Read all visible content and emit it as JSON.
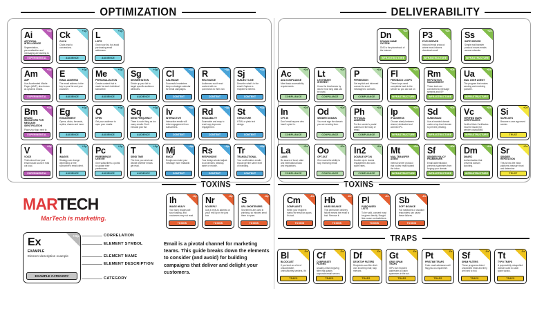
{
  "headers": {
    "optimization": "OPTIMIZATION",
    "deliverability": "DELIVERABILITY",
    "toxins_left": "TOXINS",
    "toxins_right": "TOXINS",
    "traps": "TRAPS"
  },
  "branding": {
    "mar": "MAR",
    "tech": "TECH",
    "tagline": "MarTech is marketing."
  },
  "intro": {
    "text": "Email is a pivotal channel for marketing teams. This guide breaks down the elements to consider (and avoid) for building campaigns that deliver and delight your customers."
  },
  "legend": {
    "correlation_mark": "+Op",
    "symbol": "Ex",
    "name": "EXAMPLE",
    "description": "Element description example",
    "category": "EXAMPLE CATEGORY",
    "labels": [
      "CORRELATION",
      "ELEMENT SYMBOL",
      "ELEMENT NAME",
      "ELEMENT DESCRIPTION",
      "CATEGORY"
    ]
  },
  "categories": {
    "experimental": {
      "label": "EXPERIMENTAL",
      "color": "#b95ab5",
      "text": "#ffffff"
    },
    "audience": {
      "label": "AUDIENCE",
      "color": "#7ed3e0",
      "text": "#09363d"
    },
    "content": {
      "label": "CONTENT",
      "color": "#4aa4d8",
      "text": "#ffffff"
    },
    "compliance": {
      "label": "COMPLIANCE",
      "color": "#b7dcae",
      "text": "#1d4a1d"
    },
    "infrastructure": {
      "label": "INFRASTRUCTURE",
      "color": "#82bd4a",
      "text": "#ffffff"
    },
    "trust": {
      "label": "TRUST",
      "color": "#f4e63a",
      "text": "#4a4200"
    },
    "toxins": {
      "label": "TOXINS",
      "color": "#e45f31",
      "text": "#ffffff"
    },
    "traps": {
      "label": "TRAPS",
      "color": "#eec31e",
      "text": "#3f3403"
    }
  },
  "groups": {
    "optimization": {
      "corner": "+Op",
      "rows": [
        [
          {
            "sym": "Ai",
            "name": "Artificial Intelligence",
            "desc": "Segmentation, personalization and messaging are starting to tap this capability.",
            "cat": "experimental"
          },
          {
            "sym": "Ck",
            "name": "Click",
            "desc": "Clicks lead to conversions.",
            "cat": "audience"
          },
          {
            "sym": "L",
            "name": "Lists",
            "desc": "Grow your list, but avoid purchasing email addresses.",
            "cat": "audience"
          }
        ],
        [
          {
            "sym": "Am",
            "name": "AMP",
            "desc": "Use Accelerated Mobile Pages (AMP), also known as dynamic emails.",
            "cat": "experimental"
          },
          {
            "sym": "E",
            "name": "Email Address",
            "desc": "The email address is the key to your list and your customer.",
            "cat": "audience"
          },
          {
            "sym": "Me",
            "name": "Personalization",
            "desc": "Create content that is made for each individual subscriber.",
            "cat": "audience"
          },
          {
            "sym": "Sg",
            "name": "Segmentation",
            "desc": "Divide up your list to target specific audience attributes.",
            "cat": "audience"
          },
          {
            "sym": "Cl",
            "name": "Calendar",
            "desc": "Successful marketers keep a strategic calendar for email campaigns.",
            "cat": "content"
          },
          {
            "sym": "R",
            "name": "Relevance",
            "desc": "Audiences won't read content with no connection to their own lives.",
            "cat": "content"
          },
          {
            "sym": "Sj",
            "name": "Subject Line",
            "desc": "Describe what's in the email. Capture a recipient's interest.",
            "cat": "content"
          }
        ],
        [
          {
            "sym": "Bm",
            "name": "Brand Indicators for Message Identification",
            "desc": "Place your logo next to your authenticated email in inboxes.",
            "cat": "experimental"
          },
          {
            "sym": "Eg",
            "name": "Engagement",
            "desc": "Opens, clicks, forwards, replies, shares and more.",
            "cat": "audience"
          },
          {
            "sym": "O",
            "name": "Open",
            "desc": "Get your audience to open your emails.",
            "cat": "audience"
          },
          {
            "sym": "Sq",
            "name": "Send Frequency",
            "desc": "There is such thing as too many emails. Don't exhaust your list.",
            "cat": "audience"
          },
          {
            "sym": "Iv",
            "name": "Interactive",
            "desc": "Interactive emails will drive engagement from subscribers.",
            "cat": "content"
          },
          {
            "sym": "Rd",
            "name": "Readability",
            "desc": "Scannable and easy to read copy improves engagement.",
            "cat": "content"
          },
          {
            "sym": "St",
            "name": "Structure",
            "desc": "HTML or plain text design.",
            "cat": "content"
          }
        ],
        [
          {
            "sym": "V",
            "name": "Voice",
            "desc": "Think about how your email would sound if read out loud.",
            "cat": "experimental"
          },
          {
            "sym": "I",
            "name": "Images",
            "desc": "Strategy can change depending on the subscriber's email client.",
            "cat": "audience"
          },
          {
            "sym": "Pc",
            "name": "Preference Center",
            "desc": "Give subscribers a portal to update their preferences.",
            "cat": "audience"
          },
          {
            "sym": "T",
            "name": "Send Time",
            "desc": "The time you send can decide whether emails get read.",
            "cat": "audience"
          },
          {
            "sym": "Mj",
            "name": "Emoji",
            "desc": "Emojis can make your message more relatable.",
            "cat": "content"
          },
          {
            "sym": "Rs",
            "name": "Responsive",
            "desc": "Your design should adjust to all devices: desktop, tablet or mobile.",
            "cat": "content"
          },
          {
            "sym": "Tr",
            "name": "Transactional",
            "desc": "Your confirmation emails should get the same level of branding.",
            "cat": "content"
          }
        ]
      ]
    },
    "deliverability": {
      "corner": "+De",
      "rows": [
        [
          {
            "sym": "Dn",
            "name": "Domain Name System",
            "desc": "DNS is the phonebook of the internet.",
            "cat": "infrastructure"
          },
          {
            "sym": "P3",
            "name": "POP3 Server",
            "desc": "Inbound email protocol where most inboxes download email.",
            "cat": "infrastructure"
          },
          {
            "sym": "Ss",
            "name": "SMTP Server",
            "desc": "Simple mail transfer protocol moves emails across networks.",
            "cat": "infrastructure"
          }
        ],
        [
          {
            "sym": "Ac",
            "name": "ADA Compliance",
            "desc": "Meet basic accessibility requirements.",
            "cat": "compliance"
          },
          {
            "sym": "Lt",
            "name": "Legitimate Interest",
            "desc": "Know the timeframes by law for how long data can be used.",
            "cat": "compliance"
          },
          {
            "sym": "P",
            "name": "Permission",
            "desc": "Get explicit and informed consent to send messages to contacts.",
            "cat": "compliance"
          },
          {
            "sym": "Fl",
            "name": "Feedback Loops",
            "desc": "These loops send complaints back to the sender so you can act on them.",
            "cat": "infrastructure"
          },
          {
            "sym": "Rm",
            "name": "Reputation Management",
            "desc": "These tools are connected to message streams and ISP feedback.",
            "cat": "infrastructure"
          },
          {
            "sym": "Ua",
            "name": "Mail User Agent",
            "desc": "The program that makes sending and receiving possible.",
            "cat": "infrastructure"
          }
        ],
        [
          {
            "sym": "In",
            "name": "Opt-In",
            "desc": "Don't email anyone who hasn't opted in.",
            "cat": "compliance"
          },
          {
            "sym": "Od",
            "name": "Sender Domain",
            "desc": "You must sign the domain you are sending from.",
            "cat": "compliance"
          },
          {
            "sym": "Ph",
            "name": "Physical Address",
            "desc": "Put the sender's postal address in the body of email.",
            "cat": "compliance"
          },
          {
            "sym": "Ip",
            "name": "IP Address",
            "desc": "Choose wisely between shared, dedicated and warmed IPs.",
            "cat": "infrastructure"
          },
          {
            "sym": "Sd",
            "name": "Subdomain",
            "desc": "Use a branded domain under a top-level domain to prevent phishing.",
            "cat": "infrastructure"
          },
          {
            "sym": "Vc",
            "name": "Verified Mark Certificates",
            "desc": "Verified Mark Certificates must be issued for senders using BIMI.",
            "cat": "infrastructure"
          },
          {
            "sym": "Si",
            "name": "Safelists",
            "desc": "Become a user-approved sender.",
            "cat": "trust"
          }
        ],
        [
          {
            "sym": "La",
            "name": "Laws",
            "desc": "Be aware of local, state and international laws and regulations.",
            "cat": "compliance"
          },
          {
            "sym": "Oo",
            "name": "Opt-Out",
            "desc": "Give users the ability to stop receiving email.",
            "cat": "compliance"
          },
          {
            "sym": "In2",
            "name": "Double Opt-In",
            "desc": "Double opt-in boosts engagement and cuts spam rates.",
            "cat": "compliance"
          },
          {
            "sym": "Mt",
            "name": "Mail Transfer Agent",
            "desc": "Internal server protocol that routes email toward the inbox.",
            "cat": "infrastructure"
          },
          {
            "sym": "Sf",
            "name": "Sender Policy Framework",
            "desc": "Email authentication prevents spammers from forging your domain.",
            "cat": "infrastructure"
          },
          {
            "sym": "Dm",
            "name": "DMARC",
            "desc": "Authentication that prevents domain spoofing.",
            "cat": "infrastructure"
          },
          {
            "sym": "Sr",
            "name": "Sender Reputation",
            "desc": "This is how the inbox platforms measure trust and determine placements.",
            "cat": "trust"
          }
        ]
      ]
    },
    "toxins_left": {
      "corner": "-Op",
      "rows": [
        [
          {
            "sym": "Ih",
            "name": "Image Heavy",
            "desc": "Too many images will slow loading, and customers may not read.",
            "cat": "toxins"
          },
          {
            "sym": "Nr",
            "name": "No-Reply",
            "desc": "Use a reply-to address or you'll end up in the junk box.",
            "cat": "toxins"
          },
          {
            "sym": "S",
            "name": "URL Shorteners",
            "desc": "Shorteners are used in phishing, so inboxes send them to spam.",
            "cat": "toxins"
          }
        ]
      ]
    },
    "toxins_right": {
      "corner": "-De",
      "rows": [
        [
          {
            "sym": "Cm",
            "name": "Complaints",
            "desc": "When your recipient marks the email as spam, it's bad.",
            "cat": "toxins"
          },
          {
            "sym": "Hb",
            "name": "Hard Bounce",
            "desc": "This permanent delivery failure means the email is bad. Remove it.",
            "cat": "toxins"
          },
          {
            "sym": "Pl",
            "name": "Purchased Lists",
            "desc": "To be valid, consent must be given directly. Bought lists cause contradictions.",
            "cat": "toxins"
          },
          {
            "sym": "Sb",
            "name": "Soft Bounce",
            "desc": "Full mailboxes or vacation responders can cause these failures.",
            "cat": "toxins"
          }
        ]
      ]
    },
    "traps": {
      "corner": "-De",
      "rows": [
        [
          {
            "sym": "Bl",
            "name": "Blocklist",
            "desc": "If you land on a list of unacceptable, untrustworthy senders, it's over.",
            "cat": "traps"
          },
          {
            "sym": "Cf",
            "name": "Corporate Filters",
            "desc": "Usually a less forgiving filter that guards corporate email servers.",
            "cat": "traps"
          },
          {
            "sym": "Df",
            "name": "Desktop Filters",
            "desc": "Recipients can filter their own incoming mail; stay relevant.",
            "cat": "traps"
          },
          {
            "sym": "Gt",
            "name": "Gray Spam Traps",
            "desc": "ISPs use recycled addresses to catch spammers in the act.",
            "cat": "traps"
          },
          {
            "sym": "Pt",
            "name": "Pristine Traps",
            "desc": "Fake email addresses will flag you as a spammer.",
            "cat": "traps"
          },
          {
            "sym": "Sf",
            "name": "Spam Filters",
            "desc": "These programs detect unsolicited email and they are hard to fool.",
            "cat": "traps"
          },
          {
            "sym": "Tt",
            "name": "Typo Traps",
            "desc": "A purposefully misspelled domain used to catch spam tactics.",
            "cat": "traps"
          }
        ]
      ]
    }
  }
}
